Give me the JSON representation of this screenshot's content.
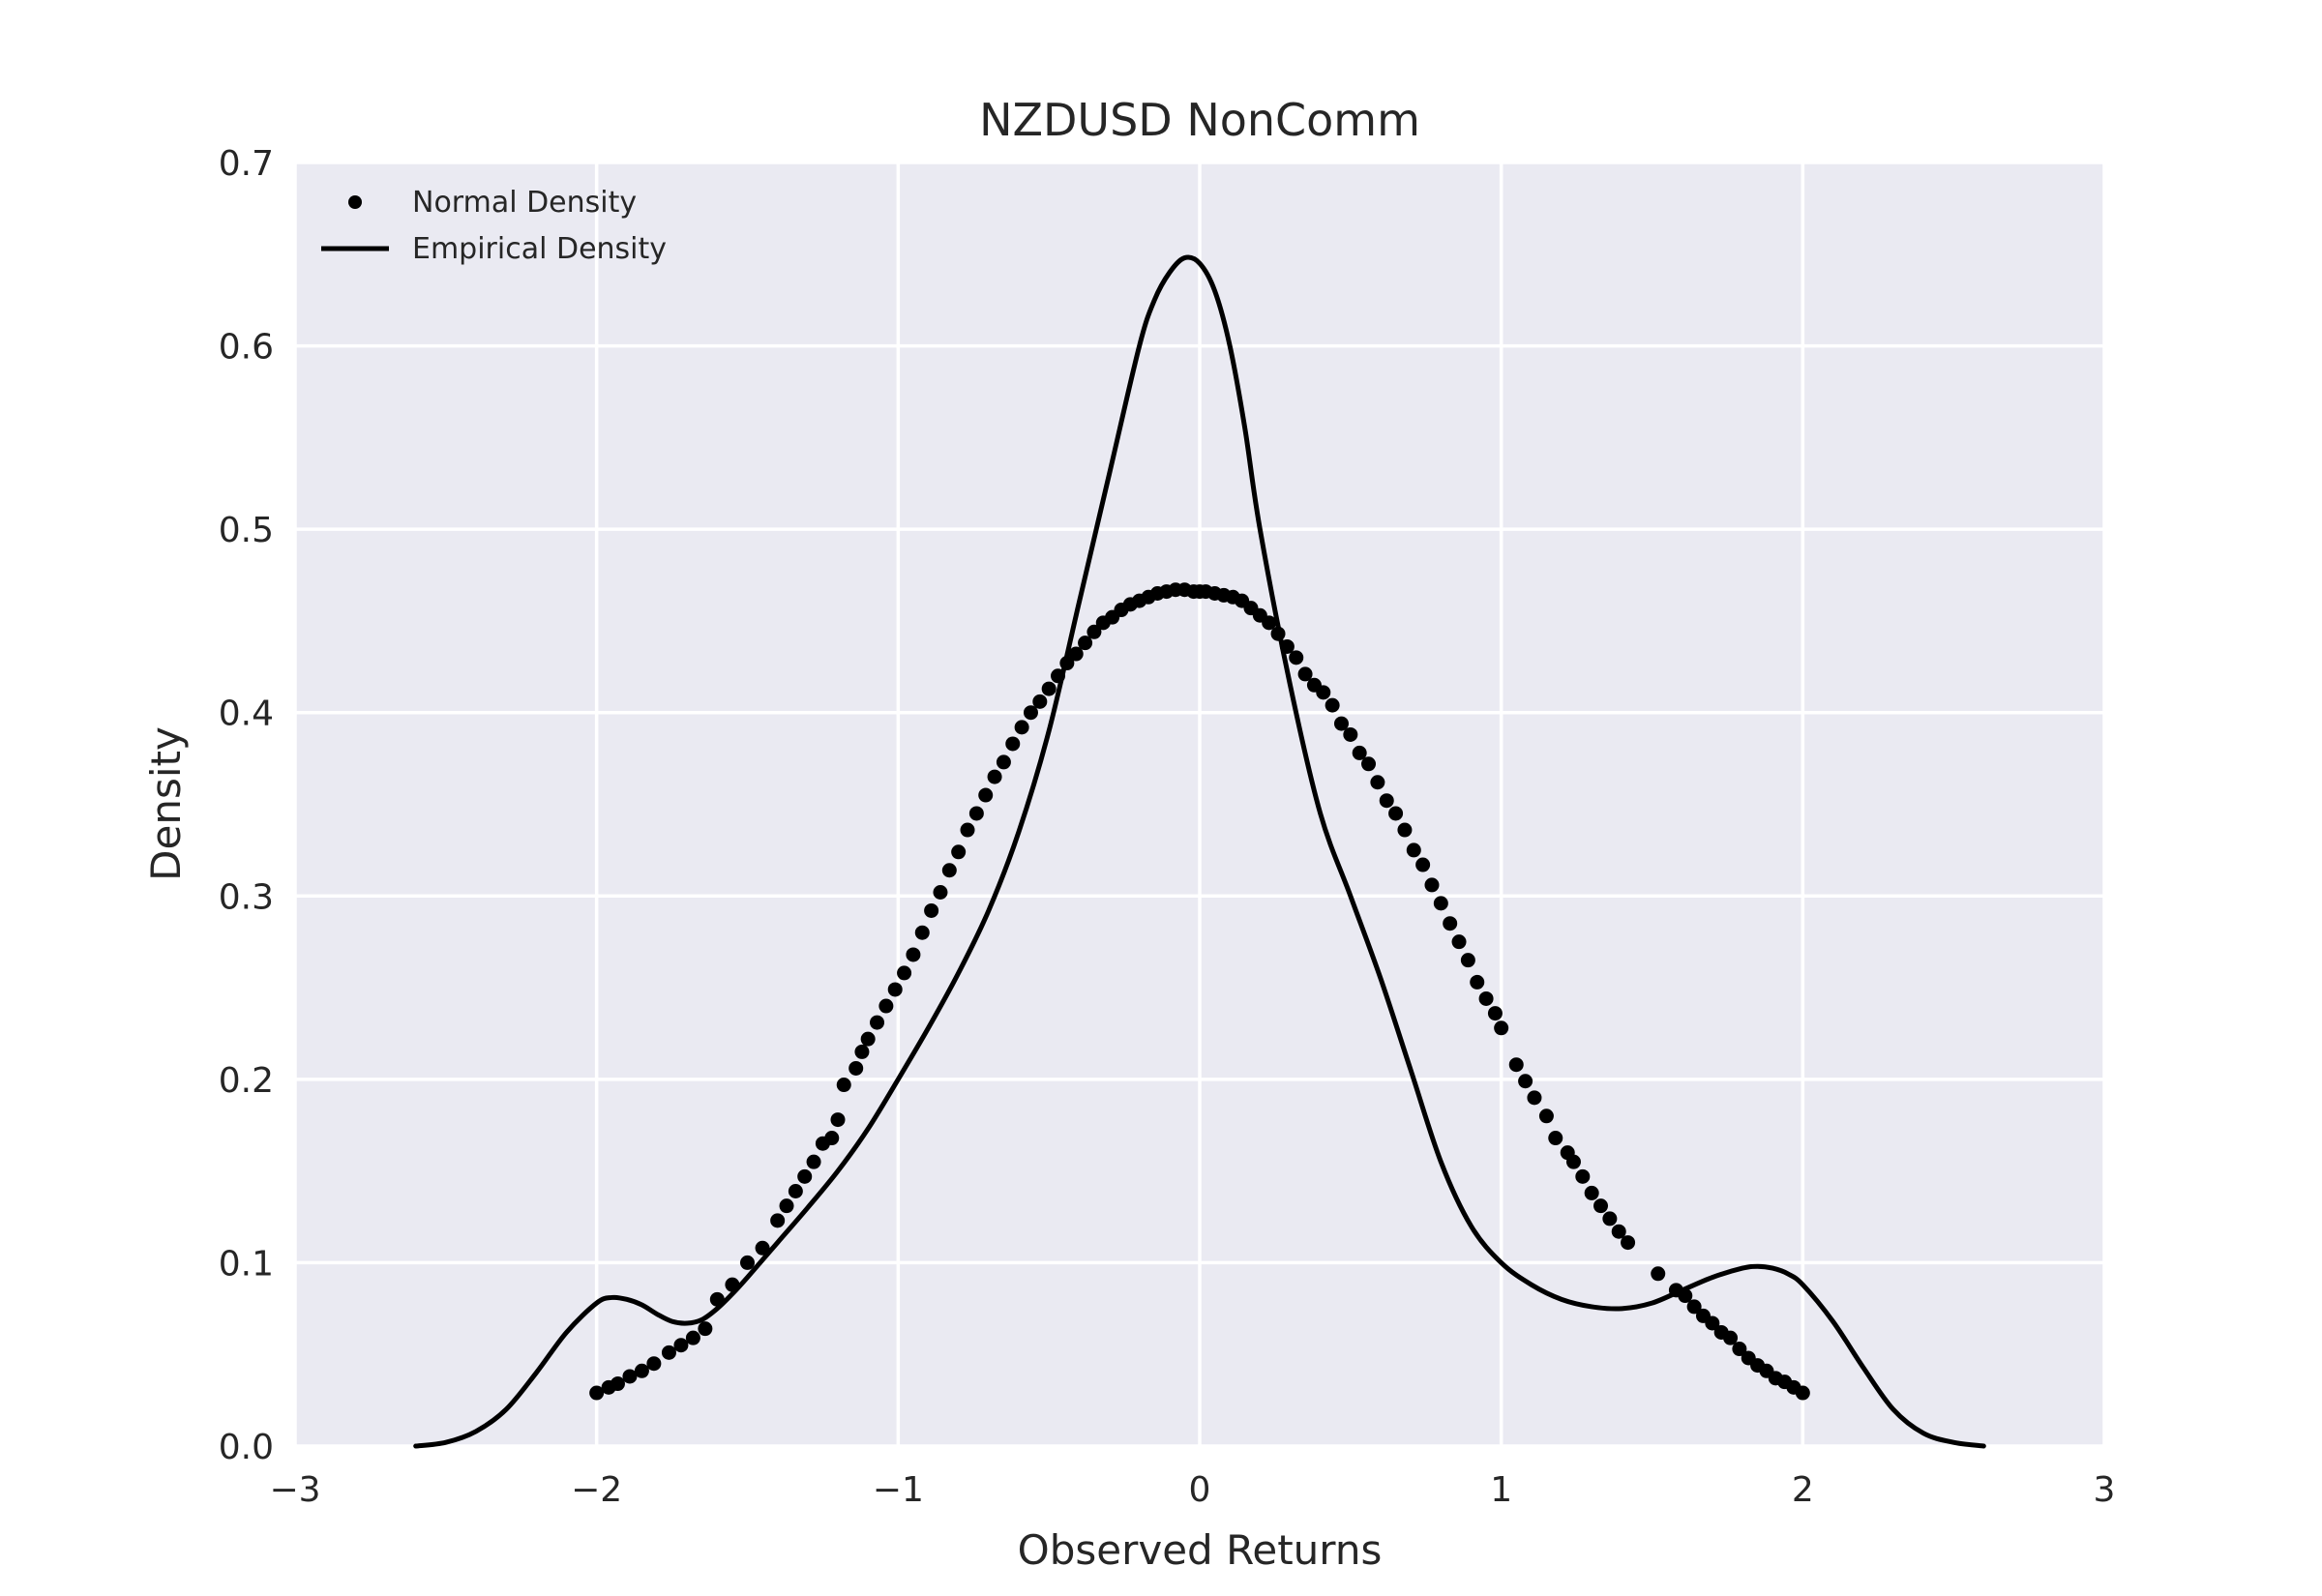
{
  "chart_data": {
    "type": "line",
    "title": "NZDUSD NonComm",
    "xlabel": "Observed Returns",
    "ylabel": "Density",
    "xlim": [
      -3,
      3
    ],
    "ylim": [
      0,
      0.7
    ],
    "xticks": [
      -3,
      -2,
      -1,
      0,
      1,
      2,
      3
    ],
    "xtick_labels": [
      "−3",
      "−2",
      "−1",
      "0",
      "1",
      "2",
      "3"
    ],
    "yticks": [
      0.0,
      0.1,
      0.2,
      0.3,
      0.4,
      0.5,
      0.6,
      0.7
    ],
    "ytick_labels": [
      "0.0",
      "0.1",
      "0.2",
      "0.3",
      "0.4",
      "0.5",
      "0.6",
      "0.7"
    ],
    "grid": true,
    "legend_position": "top-left",
    "background_color": "#eaeaf2",
    "series_color": "#000000",
    "series": [
      {
        "name": "Normal Density",
        "style": "markers",
        "x": [
          -2.0,
          -1.96,
          -1.93,
          -1.89,
          -1.85,
          -1.81,
          -1.76,
          -1.72,
          -1.68,
          -1.64,
          -1.6,
          -1.55,
          -1.5,
          -1.45,
          -1.4,
          -1.37,
          -1.34,
          -1.31,
          -1.28,
          -1.25,
          -1.22,
          -1.2,
          -1.18,
          -1.14,
          -1.12,
          -1.1,
          -1.07,
          -1.04,
          -1.01,
          -0.98,
          -0.95,
          -0.92,
          -0.89,
          -0.86,
          -0.83,
          -0.8,
          -0.77,
          -0.74,
          -0.71,
          -0.68,
          -0.65,
          -0.62,
          -0.59,
          -0.56,
          -0.53,
          -0.5,
          -0.47,
          -0.44,
          -0.41,
          -0.38,
          -0.35,
          -0.32,
          -0.29,
          -0.26,
          -0.23,
          -0.2,
          -0.17,
          -0.14,
          -0.11,
          -0.08,
          -0.05,
          -0.02,
          0.0,
          0.02,
          0.05,
          0.08,
          0.11,
          0.14,
          0.17,
          0.2,
          0.23,
          0.26,
          0.29,
          0.32,
          0.35,
          0.38,
          0.41,
          0.44,
          0.47,
          0.5,
          0.53,
          0.56,
          0.59,
          0.62,
          0.65,
          0.68,
          0.71,
          0.74,
          0.77,
          0.8,
          0.83,
          0.86,
          0.89,
          0.92,
          0.95,
          0.98,
          1.0,
          1.05,
          1.08,
          1.11,
          1.15,
          1.18,
          1.22,
          1.24,
          1.27,
          1.3,
          1.33,
          1.36,
          1.39,
          1.42,
          1.52,
          1.58,
          1.61,
          1.64,
          1.67,
          1.7,
          1.73,
          1.76,
          1.79,
          1.82,
          1.85,
          1.88,
          1.91,
          1.94,
          1.97,
          2.0
        ],
        "y": [
          0.029,
          0.032,
          0.034,
          0.038,
          0.041,
          0.045,
          0.051,
          0.055,
          0.059,
          0.064,
          0.08,
          0.088,
          0.1,
          0.108,
          0.123,
          0.131,
          0.139,
          0.147,
          0.155,
          0.165,
          0.168,
          0.178,
          0.197,
          0.206,
          0.215,
          0.222,
          0.231,
          0.24,
          0.249,
          0.258,
          0.268,
          0.28,
          0.292,
          0.302,
          0.314,
          0.324,
          0.336,
          0.345,
          0.355,
          0.365,
          0.373,
          0.383,
          0.392,
          0.4,
          0.406,
          0.413,
          0.42,
          0.427,
          0.432,
          0.438,
          0.444,
          0.449,
          0.452,
          0.456,
          0.459,
          0.461,
          0.463,
          0.465,
          0.466,
          0.467,
          0.467,
          0.466,
          0.466,
          0.466,
          0.465,
          0.464,
          0.463,
          0.461,
          0.457,
          0.453,
          0.449,
          0.443,
          0.436,
          0.43,
          0.421,
          0.415,
          0.411,
          0.404,
          0.394,
          0.388,
          0.378,
          0.372,
          0.362,
          0.352,
          0.345,
          0.336,
          0.325,
          0.317,
          0.306,
          0.296,
          0.285,
          0.275,
          0.265,
          0.253,
          0.244,
          0.236,
          0.228,
          0.208,
          0.199,
          0.19,
          0.18,
          0.168,
          0.16,
          0.155,
          0.147,
          0.138,
          0.131,
          0.124,
          0.117,
          0.111,
          0.094,
          0.085,
          0.082,
          0.076,
          0.071,
          0.067,
          0.062,
          0.059,
          0.053,
          0.048,
          0.044,
          0.041,
          0.037,
          0.035,
          0.032,
          0.029
        ]
      },
      {
        "name": "Empirical Density",
        "style": "line",
        "x": [
          -2.6,
          -2.5,
          -2.4,
          -2.3,
          -2.2,
          -2.1,
          -2.0,
          -1.95,
          -1.9,
          -1.85,
          -1.8,
          -1.75,
          -1.7,
          -1.65,
          -1.6,
          -1.55,
          -1.5,
          -1.4,
          -1.3,
          -1.2,
          -1.1,
          -1.0,
          -0.9,
          -0.8,
          -0.7,
          -0.6,
          -0.5,
          -0.4,
          -0.3,
          -0.2,
          -0.15,
          -0.1,
          -0.05,
          0.0,
          0.05,
          0.1,
          0.15,
          0.2,
          0.3,
          0.4,
          0.5,
          0.6,
          0.7,
          0.8,
          0.9,
          1.0,
          1.1,
          1.2,
          1.3,
          1.4,
          1.5,
          1.6,
          1.7,
          1.8,
          1.85,
          1.9,
          1.95,
          2.0,
          2.1,
          2.2,
          2.3,
          2.4,
          2.5,
          2.6
        ],
        "y": [
          0.0,
          0.002,
          0.008,
          0.02,
          0.04,
          0.062,
          0.078,
          0.081,
          0.08,
          0.077,
          0.072,
          0.068,
          0.067,
          0.069,
          0.075,
          0.083,
          0.092,
          0.111,
          0.13,
          0.15,
          0.173,
          0.2,
          0.228,
          0.258,
          0.292,
          0.335,
          0.39,
          0.46,
          0.53,
          0.6,
          0.625,
          0.64,
          0.648,
          0.645,
          0.63,
          0.6,
          0.555,
          0.5,
          0.415,
          0.345,
          0.3,
          0.255,
          0.205,
          0.155,
          0.12,
          0.1,
          0.088,
          0.08,
          0.076,
          0.075,
          0.078,
          0.085,
          0.092,
          0.097,
          0.098,
          0.097,
          0.094,
          0.088,
          0.068,
          0.043,
          0.02,
          0.007,
          0.002,
          0.0
        ]
      }
    ]
  }
}
